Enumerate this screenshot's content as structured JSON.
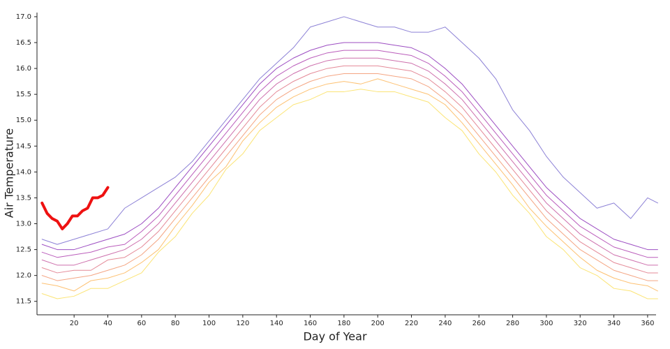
{
  "chart_data": {
    "type": "line",
    "x_label": "Day of Year",
    "y_label": "Air Temperature",
    "xlim": [
      -2,
      365
    ],
    "ylim": [
      11.24,
      17.08
    ],
    "xticks": [
      20,
      40,
      60,
      80,
      100,
      120,
      140,
      160,
      180,
      200,
      220,
      240,
      260,
      280,
      300,
      320,
      340,
      360
    ],
    "yticks": [
      11.5,
      {
        "value": 12,
        "label": "12.0"
      },
      12.5,
      {
        "value": 13,
        "label": "13.0"
      },
      13.5,
      {
        "value": 14,
        "label": "14.0"
      },
      14.5,
      {
        "value": 15,
        "label": "15.0"
      },
      15.5,
      {
        "value": 16,
        "label": "16.0"
      },
      16.5,
      {
        "value": 17,
        "label": "17.0"
      }
    ],
    "series": [
      {
        "color": "#f9d83a",
        "line_width": 1,
        "x": [
          1,
          10,
          20,
          30,
          40,
          50,
          60,
          70,
          80,
          90,
          100,
          110,
          120,
          130,
          140,
          150,
          160,
          170,
          180,
          190,
          200,
          210,
          220,
          230,
          240,
          250,
          260,
          270,
          280,
          290,
          300,
          310,
          320,
          330,
          340,
          350,
          360,
          366
        ],
        "values": [
          11.65,
          11.55,
          11.6,
          11.75,
          11.75,
          11.9,
          12.05,
          12.45,
          12.75,
          13.2,
          13.55,
          14.05,
          14.35,
          14.8,
          15.05,
          15.3,
          15.4,
          15.55,
          15.55,
          15.6,
          15.55,
          15.55,
          15.45,
          15.35,
          15.05,
          14.8,
          14.35,
          14.0,
          13.55,
          13.2,
          12.75,
          12.5,
          12.15,
          12.0,
          11.75,
          11.7,
          11.55,
          11.55
        ]
      },
      {
        "color": "#fca636",
        "line_width": 1,
        "x": [
          1,
          10,
          20,
          30,
          40,
          50,
          60,
          70,
          80,
          90,
          100,
          110,
          120,
          130,
          140,
          150,
          160,
          170,
          180,
          190,
          200,
          210,
          220,
          230,
          240,
          250,
          260,
          270,
          280,
          290,
          300,
          310,
          320,
          330,
          340,
          350,
          360,
          366
        ],
        "values": [
          11.85,
          11.8,
          11.7,
          11.9,
          11.95,
          12.05,
          12.25,
          12.5,
          12.95,
          13.35,
          13.8,
          14.1,
          14.6,
          14.95,
          15.25,
          15.45,
          15.6,
          15.7,
          15.75,
          15.7,
          15.8,
          15.7,
          15.6,
          15.5,
          15.3,
          14.95,
          14.55,
          14.15,
          13.75,
          13.3,
          12.95,
          12.65,
          12.35,
          12.1,
          11.95,
          11.85,
          11.8,
          11.7
        ]
      },
      {
        "color": "#f07f4f",
        "line_width": 1,
        "x": [
          1,
          10,
          20,
          30,
          40,
          50,
          60,
          70,
          80,
          90,
          100,
          110,
          120,
          130,
          140,
          150,
          160,
          170,
          180,
          190,
          200,
          210,
          220,
          230,
          240,
          250,
          260,
          270,
          280,
          290,
          300,
          310,
          320,
          330,
          340,
          350,
          360,
          366
        ],
        "values": [
          12.0,
          11.9,
          11.95,
          12.0,
          12.1,
          12.2,
          12.4,
          12.7,
          13.1,
          13.5,
          13.9,
          14.3,
          14.7,
          15.1,
          15.4,
          15.6,
          15.75,
          15.85,
          15.9,
          15.9,
          15.9,
          15.85,
          15.8,
          15.65,
          15.4,
          15.1,
          14.7,
          14.3,
          13.9,
          13.5,
          13.1,
          12.8,
          12.5,
          12.3,
          12.1,
          12.0,
          11.9,
          11.9
        ]
      },
      {
        "color": "#d8576b",
        "line_width": 1,
        "x": [
          1,
          10,
          20,
          30,
          40,
          50,
          60,
          70,
          80,
          90,
          100,
          110,
          120,
          130,
          140,
          150,
          160,
          170,
          180,
          190,
          200,
          210,
          220,
          230,
          240,
          250,
          260,
          270,
          280,
          290,
          300,
          310,
          320,
          330,
          340,
          350,
          360,
          366
        ],
        "values": [
          12.15,
          12.05,
          12.1,
          12.1,
          12.3,
          12.35,
          12.55,
          12.85,
          13.25,
          13.65,
          14.05,
          14.45,
          14.85,
          15.25,
          15.55,
          15.75,
          15.9,
          16.0,
          16.05,
          16.05,
          16.05,
          16.0,
          15.95,
          15.8,
          15.55,
          15.25,
          14.85,
          14.45,
          14.05,
          13.65,
          13.25,
          12.95,
          12.65,
          12.45,
          12.25,
          12.15,
          12.05,
          12.05
        ]
      },
      {
        "color": "#b83289",
        "line_width": 1,
        "x": [
          1,
          10,
          20,
          30,
          40,
          50,
          60,
          70,
          80,
          90,
          100,
          110,
          120,
          130,
          140,
          150,
          160,
          170,
          180,
          190,
          200,
          210,
          220,
          230,
          240,
          250,
          260,
          270,
          280,
          290,
          300,
          310,
          320,
          330,
          340,
          350,
          360,
          366
        ],
        "values": [
          12.3,
          12.2,
          12.2,
          12.3,
          12.4,
          12.5,
          12.7,
          13.0,
          13.4,
          13.8,
          14.2,
          14.6,
          15.0,
          15.4,
          15.7,
          15.9,
          16.05,
          16.15,
          16.2,
          16.2,
          16.2,
          16.15,
          16.1,
          15.95,
          15.7,
          15.4,
          15.0,
          14.6,
          14.2,
          13.8,
          13.4,
          13.1,
          12.8,
          12.6,
          12.4,
          12.3,
          12.2,
          12.2
        ]
      },
      {
        "color": "#9c179e",
        "line_width": 1,
        "x": [
          1,
          10,
          20,
          30,
          40,
          50,
          60,
          70,
          80,
          90,
          100,
          110,
          120,
          130,
          140,
          150,
          160,
          170,
          180,
          190,
          200,
          210,
          220,
          230,
          240,
          250,
          260,
          270,
          280,
          290,
          300,
          310,
          320,
          330,
          340,
          350,
          360,
          366
        ],
        "values": [
          12.45,
          12.35,
          12.4,
          12.45,
          12.55,
          12.6,
          12.85,
          13.15,
          13.55,
          13.95,
          14.35,
          14.75,
          15.15,
          15.55,
          15.85,
          16.05,
          16.2,
          16.3,
          16.35,
          16.35,
          16.35,
          16.3,
          16.25,
          16.1,
          15.85,
          15.55,
          15.15,
          14.75,
          14.35,
          13.95,
          13.55,
          13.25,
          12.95,
          12.75,
          12.55,
          12.45,
          12.35,
          12.35
        ]
      },
      {
        "color": "#7201a8",
        "line_width": 1,
        "x": [
          1,
          10,
          20,
          30,
          40,
          50,
          60,
          70,
          80,
          90,
          100,
          110,
          120,
          130,
          140,
          150,
          160,
          170,
          180,
          190,
          200,
          210,
          220,
          230,
          240,
          250,
          260,
          270,
          280,
          290,
          300,
          310,
          320,
          330,
          340,
          350,
          360,
          366
        ],
        "values": [
          12.6,
          12.5,
          12.5,
          12.6,
          12.7,
          12.8,
          13.0,
          13.3,
          13.7,
          14.1,
          14.5,
          14.9,
          15.3,
          15.7,
          16.0,
          16.2,
          16.35,
          16.45,
          16.5,
          16.5,
          16.5,
          16.45,
          16.4,
          16.25,
          16.0,
          15.7,
          15.3,
          14.9,
          14.5,
          14.1,
          13.7,
          13.4,
          13.1,
          12.9,
          12.7,
          12.6,
          12.5,
          12.5
        ]
      },
      {
        "color": "#5b4cc4",
        "line_width": 1,
        "x": [
          1,
          10,
          20,
          30,
          40,
          50,
          60,
          70,
          80,
          90,
          100,
          110,
          120,
          130,
          140,
          150,
          160,
          170,
          180,
          190,
          200,
          210,
          220,
          230,
          240,
          250,
          260,
          270,
          280,
          290,
          300,
          310,
          320,
          330,
          340,
          350,
          360,
          366
        ],
        "values": [
          12.7,
          12.6,
          12.7,
          12.8,
          12.9,
          13.3,
          13.5,
          13.7,
          13.9,
          14.2,
          14.6,
          15.0,
          15.4,
          15.8,
          16.1,
          16.4,
          16.8,
          16.9,
          17.0,
          16.9,
          16.8,
          16.8,
          16.7,
          16.7,
          16.8,
          16.5,
          16.2,
          15.8,
          15.2,
          14.8,
          14.3,
          13.9,
          13.6,
          13.3,
          13.4,
          13.1,
          13.5,
          13.4
        ]
      },
      {
        "color": "#ee1111",
        "line_width": 4,
        "x": [
          1,
          4,
          7,
          10,
          13,
          16,
          19,
          22,
          25,
          28,
          31,
          34,
          37,
          40
        ],
        "values": [
          13.4,
          13.2,
          13.1,
          13.05,
          12.9,
          13.0,
          13.15,
          13.15,
          13.25,
          13.3,
          13.5,
          13.5,
          13.55,
          13.7
        ]
      }
    ]
  }
}
